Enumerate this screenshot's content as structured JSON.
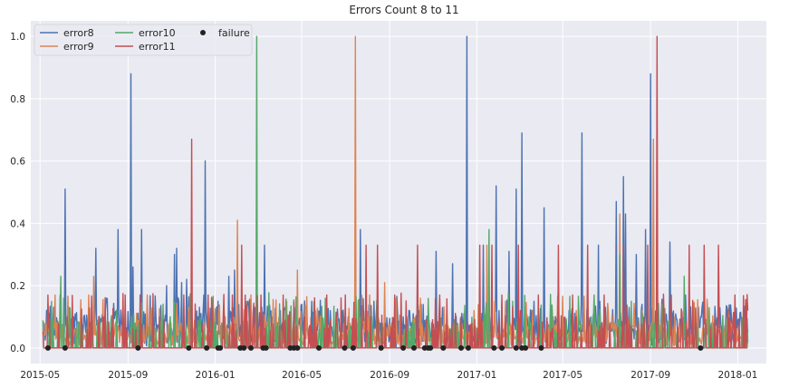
{
  "chart_data": {
    "type": "line",
    "title": "Errors Count 8 to 11",
    "xlabel": "",
    "ylabel": "",
    "x_range": [
      "2015-04-18",
      "2018-02-10"
    ],
    "ylim": [
      -0.05,
      1.05
    ],
    "x_ticks": [
      "2015-05",
      "2015-09",
      "2016-01",
      "2016-05",
      "2016-09",
      "2017-01",
      "2017-05",
      "2017-09",
      "2018-01"
    ],
    "y_ticks": [
      "0.0",
      "0.2",
      "0.4",
      "0.6",
      "0.8",
      "1.0"
    ],
    "grid": true,
    "background": "#eaeaf2",
    "legend": {
      "position": "top-left",
      "columns": 3
    },
    "series": [
      {
        "name": "error8",
        "color": "#4c72b0",
        "baseline": 0.05,
        "peaks": [
          [
            "2015-05-10",
            0.12
          ],
          [
            "2015-06-05",
            0.51
          ],
          [
            "2015-06-20",
            0.09
          ],
          [
            "2015-07-01",
            0.1
          ],
          [
            "2015-07-10",
            0.08
          ],
          [
            "2015-07-18",
            0.32
          ],
          [
            "2015-08-18",
            0.38
          ],
          [
            "2015-09-05",
            0.88
          ],
          [
            "2015-09-08",
            0.26
          ],
          [
            "2015-09-20",
            0.38
          ],
          [
            "2015-10-10",
            0.1
          ],
          [
            "2015-10-25",
            0.2
          ],
          [
            "2015-11-05",
            0.3
          ],
          [
            "2015-11-08",
            0.32
          ],
          [
            "2015-11-15",
            0.21
          ],
          [
            "2015-11-22",
            0.22
          ],
          [
            "2015-12-08",
            0.1
          ],
          [
            "2015-12-18",
            0.6
          ],
          [
            "2016-01-05",
            0.15
          ],
          [
            "2016-01-20",
            0.23
          ],
          [
            "2016-01-28",
            0.25
          ],
          [
            "2016-02-15",
            0.15
          ],
          [
            "2016-03-10",
            0.33
          ],
          [
            "2016-04-01",
            0.12
          ],
          [
            "2016-04-20",
            0.1
          ],
          [
            "2016-05-15",
            0.15
          ],
          [
            "2016-06-10",
            0.12
          ],
          [
            "2016-07-05",
            0.1
          ],
          [
            "2016-07-22",
            0.38
          ],
          [
            "2016-08-10",
            0.15
          ],
          [
            "2016-09-20",
            0.1
          ],
          [
            "2016-10-12",
            0.12
          ],
          [
            "2016-11-05",
            0.31
          ],
          [
            "2016-11-28",
            0.27
          ],
          [
            "2016-12-18",
            1.0
          ],
          [
            "2017-01-10",
            0.33
          ],
          [
            "2017-01-28",
            0.52
          ],
          [
            "2017-02-15",
            0.31
          ],
          [
            "2017-02-25",
            0.51
          ],
          [
            "2017-03-05",
            0.69
          ],
          [
            "2017-03-22",
            0.15
          ],
          [
            "2017-04-05",
            0.45
          ],
          [
            "2017-04-25",
            0.2
          ],
          [
            "2017-05-10",
            0.12
          ],
          [
            "2017-05-28",
            0.69
          ],
          [
            "2017-06-20",
            0.33
          ],
          [
            "2017-07-15",
            0.47
          ],
          [
            "2017-07-25",
            0.55
          ],
          [
            "2017-07-28",
            0.43
          ],
          [
            "2017-08-12",
            0.3
          ],
          [
            "2017-08-25",
            0.38
          ],
          [
            "2017-09-01",
            0.88
          ],
          [
            "2017-09-28",
            0.34
          ],
          [
            "2017-10-20",
            0.17
          ],
          [
            "2017-11-10",
            0.1
          ],
          [
            "2017-12-05",
            0.18
          ]
        ]
      },
      {
        "name": "error9",
        "color": "#dd8452",
        "baseline": 0.03,
        "peaks": [
          [
            "2015-05-22",
            0.17
          ],
          [
            "2015-06-15",
            0.1
          ],
          [
            "2015-07-08",
            0.17
          ],
          [
            "2015-07-15",
            0.23
          ],
          [
            "2015-08-10",
            0.1
          ],
          [
            "2015-09-28",
            0.17
          ],
          [
            "2015-10-20",
            0.08
          ],
          [
            "2015-11-25",
            0.13
          ],
          [
            "2016-01-15",
            0.1
          ],
          [
            "2016-02-01",
            0.41
          ],
          [
            "2016-02-20",
            0.17
          ],
          [
            "2016-03-15",
            0.1
          ],
          [
            "2016-04-10",
            0.15
          ],
          [
            "2016-04-25",
            0.25
          ],
          [
            "2016-05-20",
            0.12
          ],
          [
            "2016-06-18",
            0.1
          ],
          [
            "2016-07-15",
            1.0
          ],
          [
            "2016-07-29",
            0.12
          ],
          [
            "2016-08-25",
            0.21
          ],
          [
            "2016-09-25",
            0.1
          ],
          [
            "2016-10-25",
            0.1
          ],
          [
            "2016-11-20",
            0.1
          ],
          [
            "2016-12-28",
            0.12
          ],
          [
            "2017-01-15",
            0.33
          ],
          [
            "2017-02-10",
            0.15
          ],
          [
            "2017-03-20",
            0.12
          ],
          [
            "2017-04-18",
            0.1
          ],
          [
            "2017-05-20",
            0.12
          ],
          [
            "2017-06-15",
            0.1
          ],
          [
            "2017-07-20",
            0.43
          ],
          [
            "2017-08-20",
            0.12
          ],
          [
            "2017-09-05",
            0.67
          ],
          [
            "2017-10-05",
            0.1
          ],
          [
            "2017-11-20",
            0.12
          ],
          [
            "2017-12-20",
            0.1
          ]
        ]
      },
      {
        "name": "error10",
        "color": "#55a868",
        "baseline": 0.0,
        "peaks": [
          [
            "2015-05-30",
            0.23
          ],
          [
            "2015-06-25",
            0.08
          ],
          [
            "2015-09-15",
            0.08
          ],
          [
            "2015-10-30",
            0.1
          ],
          [
            "2016-01-10",
            0.08
          ],
          [
            "2016-02-28",
            1.0
          ],
          [
            "2016-03-28",
            0.08
          ],
          [
            "2016-06-20",
            0.1
          ],
          [
            "2016-10-05",
            0.08
          ],
          [
            "2017-01-18",
            0.38
          ],
          [
            "2017-02-20",
            0.15
          ],
          [
            "2017-03-15",
            0.1
          ],
          [
            "2017-06-10",
            0.1
          ],
          [
            "2017-07-20",
            0.3
          ],
          [
            "2017-08-05",
            0.15
          ],
          [
            "2017-10-18",
            0.23
          ],
          [
            "2017-11-25",
            0.08
          ]
        ]
      },
      {
        "name": "error11",
        "color": "#c44e52",
        "baseline": 0.0,
        "peaks": [
          [
            "2015-05-12",
            0.17
          ],
          [
            "2015-06-08",
            0.1
          ],
          [
            "2015-07-22",
            0.1
          ],
          [
            "2015-08-28",
            0.17
          ],
          [
            "2015-09-18",
            0.17
          ],
          [
            "2015-10-15",
            0.1
          ],
          [
            "2015-11-18",
            0.17
          ],
          [
            "2015-11-29",
            0.67
          ],
          [
            "2015-12-22",
            0.17
          ],
          [
            "2016-01-25",
            0.17
          ],
          [
            "2016-02-07",
            0.33
          ],
          [
            "2016-02-12",
            0.17
          ],
          [
            "2016-03-05",
            0.17
          ],
          [
            "2016-04-05",
            0.17
          ],
          [
            "2016-05-05",
            0.1
          ],
          [
            "2016-06-05",
            0.17
          ],
          [
            "2016-07-01",
            0.17
          ],
          [
            "2016-07-30",
            0.33
          ],
          [
            "2016-08-15",
            0.33
          ],
          [
            "2016-09-08",
            0.17
          ],
          [
            "2016-10-10",
            0.33
          ],
          [
            "2016-11-10",
            0.17
          ],
          [
            "2016-12-10",
            0.1
          ],
          [
            "2017-01-05",
            0.33
          ],
          [
            "2017-01-22",
            0.33
          ],
          [
            "2017-02-05",
            0.17
          ],
          [
            "2017-02-28",
            0.33
          ],
          [
            "2017-03-28",
            0.17
          ],
          [
            "2017-04-25",
            0.33
          ],
          [
            "2017-05-15",
            0.17
          ],
          [
            "2017-06-05",
            0.33
          ],
          [
            "2017-06-28",
            0.17
          ],
          [
            "2017-07-25",
            0.33
          ],
          [
            "2017-08-28",
            0.33
          ],
          [
            "2017-09-10",
            1.0
          ],
          [
            "2017-09-30",
            0.17
          ],
          [
            "2017-10-25",
            0.33
          ],
          [
            "2017-11-15",
            0.33
          ],
          [
            "2017-12-05",
            0.33
          ],
          [
            "2017-12-28",
            0.17
          ]
        ]
      },
      {
        "name": "failure",
        "color": "#222222",
        "marker": "circle",
        "dates": [
          "2015-05-12",
          "2015-06-05",
          "2015-09-15",
          "2015-11-25",
          "2015-12-20",
          "2016-01-05",
          "2016-01-08",
          "2016-02-05",
          "2016-02-10",
          "2016-02-20",
          "2016-03-08",
          "2016-03-12",
          "2016-04-15",
          "2016-04-20",
          "2016-04-25",
          "2016-05-25",
          "2016-06-30",
          "2016-07-12",
          "2016-08-20",
          "2016-09-20",
          "2016-10-05",
          "2016-10-20",
          "2016-10-25",
          "2016-10-28",
          "2016-11-15",
          "2016-12-10",
          "2016-12-20",
          "2017-01-25",
          "2017-02-05",
          "2017-02-25",
          "2017-03-05",
          "2017-03-10",
          "2017-04-01",
          "2017-11-10"
        ],
        "y": 0
      }
    ]
  }
}
